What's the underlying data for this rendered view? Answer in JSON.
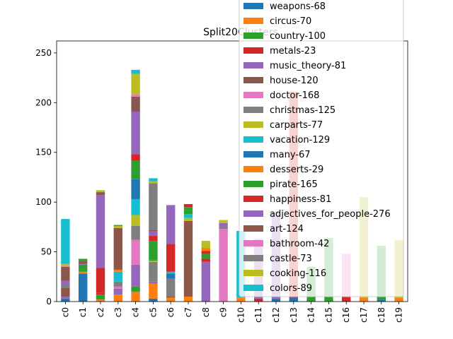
{
  "chart_data": {
    "type": "bar",
    "stacked": true,
    "title": "Split20Clusters",
    "xlabel": "",
    "ylabel": "",
    "ylim": [
      0,
      262
    ],
    "yticks": [
      0,
      50,
      100,
      150,
      200,
      250
    ],
    "grid": false,
    "legend_position": "upper right, overlapping plot",
    "categories": [
      "c0",
      "c1",
      "c2",
      "c3",
      "c4",
      "c5",
      "c6",
      "c7",
      "c8",
      "c9",
      "c10",
      "c11",
      "c12",
      "c13",
      "c14",
      "c15",
      "c16",
      "c17",
      "c18",
      "c19"
    ],
    "series": [
      {
        "name": "weapons-68",
        "color": "#1f77b4",
        "values": [
          0,
          28,
          0,
          0,
          0,
          3,
          0,
          0,
          0,
          0,
          0,
          0,
          0,
          4,
          0,
          0,
          0,
          0,
          0,
          0
        ]
      },
      {
        "name": "circus-70",
        "color": "#ff7f0e",
        "values": [
          0,
          2,
          2,
          7,
          10,
          17,
          4,
          5,
          0,
          0,
          4,
          0,
          0,
          0,
          0,
          0,
          0,
          3,
          0,
          3
        ]
      },
      {
        "name": "country-100",
        "color": "#2ca02c",
        "values": [
          0,
          2,
          5,
          0,
          4,
          0,
          0,
          0,
          0,
          0,
          0,
          0,
          0,
          0,
          4,
          4,
          0,
          0,
          0,
          0
        ]
      },
      {
        "name": "metals-23",
        "color": "#d62728",
        "values": [
          0,
          0,
          2,
          0,
          0,
          0,
          0,
          0,
          0,
          0,
          0,
          0,
          0,
          0,
          0,
          0,
          4,
          0,
          0,
          0
        ]
      },
      {
        "name": "music_theory-81",
        "color": "#9467bd",
        "values": [
          2,
          1,
          0,
          6,
          20,
          1,
          1,
          0,
          40,
          0,
          0,
          0,
          0,
          0,
          0,
          0,
          0,
          0,
          0,
          0
        ]
      },
      {
        "name": "house-120",
        "color": "#8c564b",
        "values": [
          0,
          0,
          0,
          3,
          0,
          0,
          0,
          75,
          0,
          0,
          0,
          0,
          0,
          0,
          0,
          0,
          0,
          0,
          0,
          0
        ]
      },
      {
        "name": "doctor-168",
        "color": "#e377c2",
        "values": [
          0,
          0,
          0,
          0,
          0,
          0,
          0,
          0,
          0,
          73,
          0,
          0,
          0,
          0,
          0,
          0,
          0,
          0,
          0,
          0
        ]
      },
      {
        "name": "christmas-125",
        "color": "#7f7f7f",
        "values": [
          0,
          0,
          0,
          0,
          0,
          0,
          0,
          0,
          0,
          0,
          0,
          0,
          0,
          0,
          0,
          0,
          0,
          0,
          0,
          0
        ]
      },
      {
        "name": "carparts-77",
        "color": "#bcbd22",
        "values": [
          0,
          0,
          0,
          0,
          0,
          0,
          0,
          0,
          0,
          0,
          0,
          0,
          0,
          0,
          0,
          0,
          0,
          0,
          0,
          0
        ]
      },
      {
        "name": "vacation-129",
        "color": "#17becf",
        "values": [
          0,
          0,
          0,
          0,
          0,
          0,
          0,
          0,
          0,
          0,
          0,
          0,
          0,
          0,
          0,
          0,
          0,
          0,
          0,
          0
        ]
      },
      {
        "name": "many-67",
        "color": "#1f77b4",
        "values": [
          0,
          0,
          0,
          0,
          0,
          0,
          0,
          0,
          0,
          0,
          0,
          0,
          0,
          0,
          0,
          0,
          0,
          0,
          0,
          0
        ]
      },
      {
        "name": "desserts-29",
        "color": "#ff7f0e",
        "values": [
          0,
          0,
          0,
          0,
          0,
          0,
          0,
          0,
          0,
          0,
          0,
          0,
          0,
          0,
          0,
          0,
          0,
          0,
          0,
          0
        ]
      },
      {
        "name": "pirate-165",
        "color": "#2ca02c",
        "values": [
          0,
          0,
          0,
          0,
          0,
          0,
          0,
          0,
          0,
          0,
          0,
          0,
          0,
          0,
          0,
          0,
          0,
          0,
          0,
          0
        ]
      },
      {
        "name": "happiness-81",
        "color": "#d62728",
        "values": [
          0,
          0,
          0,
          0,
          0,
          0,
          0,
          0,
          0,
          0,
          0,
          0,
          0,
          0,
          0,
          0,
          0,
          0,
          0,
          0
        ]
      },
      {
        "name": "adjectives_for_people-276",
        "color": "#9467bd",
        "values": [
          0,
          0,
          0,
          0,
          0,
          0,
          0,
          0,
          0,
          0,
          0,
          0,
          0,
          0,
          0,
          0,
          0,
          0,
          0,
          0
        ]
      },
      {
        "name": "art-124",
        "color": "#8c564b",
        "values": [
          0,
          0,
          0,
          0,
          0,
          0,
          0,
          0,
          0,
          0,
          0,
          0,
          0,
          0,
          0,
          0,
          0,
          0,
          0,
          0
        ]
      },
      {
        "name": "bathroom-42",
        "color": "#e377c2",
        "values": [
          0,
          0,
          0,
          0,
          0,
          0,
          0,
          0,
          0,
          0,
          0,
          0,
          0,
          0,
          0,
          0,
          0,
          0,
          0,
          0
        ]
      },
      {
        "name": "castle-73",
        "color": "#7f7f7f",
        "values": [
          0,
          0,
          0,
          0,
          0,
          0,
          0,
          0,
          0,
          0,
          0,
          0,
          0,
          0,
          0,
          0,
          0,
          0,
          0,
          0
        ]
      },
      {
        "name": "cooking-116",
        "color": "#bcbd22",
        "values": [
          0,
          0,
          0,
          0,
          0,
          0,
          0,
          0,
          0,
          0,
          0,
          0,
          0,
          0,
          0,
          0,
          0,
          0,
          0,
          0
        ]
      },
      {
        "name": "colors-89",
        "color": "#17becf",
        "values": [
          0,
          0,
          0,
          0,
          0,
          0,
          0,
          0,
          0,
          0,
          0,
          0,
          0,
          0,
          0,
          0,
          0,
          0,
          0,
          0
        ]
      }
    ],
    "stack_segments": [
      [
        {
          "s": 0,
          "v": 3
        },
        {
          "s": 4,
          "v": 2
        },
        {
          "s": 5,
          "v": 9
        },
        {
          "s": 7,
          "v": 1
        },
        {
          "s": 2,
          "v": 1
        },
        {
          "s": 14,
          "v": 5
        },
        {
          "s": 15,
          "v": 14
        },
        {
          "s": 16,
          "v": 1
        },
        {
          "s": 18,
          "v": 2
        },
        {
          "s": 19,
          "v": 45
        }
      ],
      [
        {
          "s": 0,
          "v": 28
        },
        {
          "s": 1,
          "v": 2
        },
        {
          "s": 2,
          "v": 2
        },
        {
          "s": 12,
          "v": 5
        },
        {
          "s": 14,
          "v": 1
        },
        {
          "s": 15,
          "v": 3
        },
        {
          "s": 12,
          "v": 2
        }
      ],
      [
        {
          "s": 1,
          "v": 2
        },
        {
          "s": 2,
          "v": 5
        },
        {
          "s": 3,
          "v": 2
        },
        {
          "s": 13,
          "v": 25
        },
        {
          "s": 14,
          "v": 73
        },
        {
          "s": 15,
          "v": 3
        },
        {
          "s": 18,
          "v": 2
        }
      ],
      [
        {
          "s": 1,
          "v": 7
        },
        {
          "s": 4,
          "v": 6
        },
        {
          "s": 6,
          "v": 2
        },
        {
          "s": 7,
          "v": 5
        },
        {
          "s": 9,
          "v": 10
        },
        {
          "s": 11,
          "v": 2
        },
        {
          "s": 15,
          "v": 42
        },
        {
          "s": 18,
          "v": 2
        },
        {
          "s": 12,
          "v": 1
        }
      ],
      [
        {
          "s": 1,
          "v": 10
        },
        {
          "s": 2,
          "v": 5
        },
        {
          "s": 4,
          "v": 22
        },
        {
          "s": 6,
          "v": 25
        },
        {
          "s": 7,
          "v": 14
        },
        {
          "s": 8,
          "v": 11
        },
        {
          "s": 9,
          "v": 16
        },
        {
          "s": 10,
          "v": 20
        },
        {
          "s": 12,
          "v": 19
        },
        {
          "s": 13,
          "v": 6
        },
        {
          "s": 14,
          "v": 43
        },
        {
          "s": 15,
          "v": 15
        },
        {
          "s": 16,
          "v": 2
        },
        {
          "s": 18,
          "v": 21
        },
        {
          "s": 19,
          "v": 4
        }
      ],
      [
        {
          "s": 0,
          "v": 3
        },
        {
          "s": 1,
          "v": 15
        },
        {
          "s": 4,
          "v": 2
        },
        {
          "s": 7,
          "v": 20
        },
        {
          "s": 8,
          "v": 1
        },
        {
          "s": 2,
          "v": 1
        },
        {
          "s": 12,
          "v": 19
        },
        {
          "s": 13,
          "v": 5
        },
        {
          "s": 14,
          "v": 5
        },
        {
          "s": 15,
          "v": 1
        },
        {
          "s": 17,
          "v": 47
        },
        {
          "s": 18,
          "v": 2
        },
        {
          "s": 19,
          "v": 3
        }
      ],
      [
        {
          "s": 1,
          "v": 4
        },
        {
          "s": 5,
          "v": 1
        },
        {
          "s": 7,
          "v": 18
        },
        {
          "s": 10,
          "v": 5
        },
        {
          "s": 19,
          "v": 2
        },
        {
          "s": 13,
          "v": 28
        },
        {
          "s": 14,
          "v": 39
        }
      ],
      [
        {
          "s": 1,
          "v": 5
        },
        {
          "s": 15,
          "v": 75
        },
        {
          "s": 3,
          "v": 1
        },
        {
          "s": 18,
          "v": 3
        },
        {
          "s": 19,
          "v": 4
        },
        {
          "s": 2,
          "v": 4
        },
        {
          "s": 12,
          "v": 3
        },
        {
          "s": 13,
          "v": 3
        }
      ],
      [
        {
          "s": 4,
          "v": 40
        },
        {
          "s": 13,
          "v": 3
        },
        {
          "s": 12,
          "v": 5
        },
        {
          "s": 3,
          "v": 3
        },
        {
          "s": 11,
          "v": 3
        },
        {
          "s": 18,
          "v": 7
        }
      ],
      [
        {
          "s": 16,
          "v": 73
        },
        {
          "s": 17,
          "v": 2
        },
        {
          "s": 14,
          "v": 4
        },
        {
          "s": 18,
          "v": 3
        }
      ],
      [
        {
          "s": 1,
          "v": 4
        },
        {
          "s": 19,
          "v": 67
        }
      ],
      [
        {
          "s": 3,
          "v": 3
        },
        {
          "s": 14,
          "v": 60
        }
      ],
      [
        {
          "s": 0,
          "v": 3
        },
        {
          "s": 14,
          "v": 87
        }
      ],
      [
        {
          "s": 0,
          "v": 4
        },
        {
          "s": 13,
          "v": 207
        }
      ],
      [
        {
          "s": 2,
          "v": 5
        },
        {
          "s": 2,
          "v": 30
        }
      ],
      [
        {
          "s": 2,
          "v": 5
        },
        {
          "s": 2,
          "v": 59
        }
      ],
      [
        {
          "s": 3,
          "v": 5
        },
        {
          "s": 16,
          "v": 43
        }
      ],
      [
        {
          "s": 1,
          "v": 4
        },
        {
          "s": 18,
          "v": 101
        }
      ],
      [
        {
          "s": 0,
          "v": 2
        },
        {
          "s": 2,
          "v": 54
        }
      ],
      [
        {
          "s": 1,
          "v": 4
        },
        {
          "s": 18,
          "v": 58
        }
      ]
    ]
  }
}
